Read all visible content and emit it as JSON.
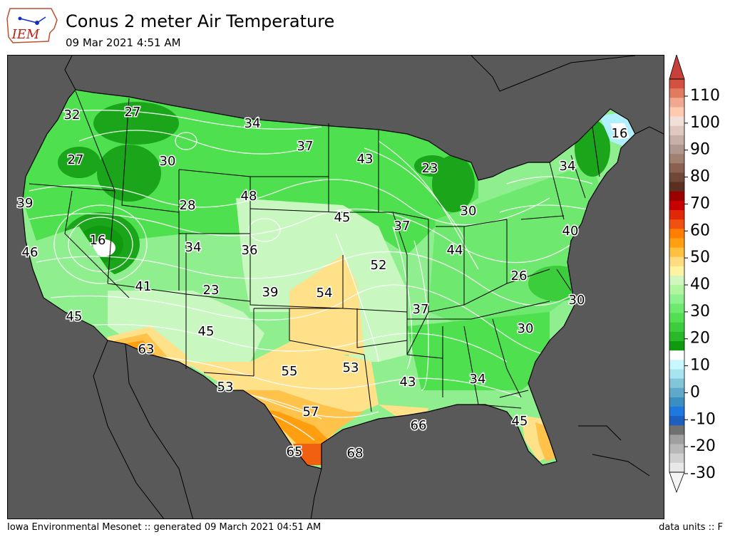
{
  "header": {
    "logo_text": "IEM",
    "title": "Conus 2 meter Air Temperature",
    "subtitle": "09 Mar 2021 4:51 AM"
  },
  "footer": {
    "left": "Iowa Environmental Mesonet :: generated 09 March 2021 04:51 AM",
    "right": "data units :: F"
  },
  "colors": {
    "background": "#595959",
    "green_dark": "#1aa51a",
    "green": "#4ee04e",
    "green_light": "#8fef8f",
    "green_pale": "#c8f7c0",
    "yellow": "#ffe18a",
    "orange_light": "#ffc24a",
    "orange": "#ff9f10",
    "red_orange": "#f06010",
    "cyan": "#b0f0ff",
    "white": "#ffffff"
  },
  "colorbar": {
    "ticks": [
      "110",
      "100",
      "90",
      "80",
      "70",
      "60",
      "50",
      "40",
      "30",
      "20",
      "10",
      "0",
      "-10",
      "-20",
      "-30"
    ],
    "segments": [
      "#e8e8e8",
      "#d0d0d0",
      "#b8b8b8",
      "#a0a0a0",
      "#707070",
      "#1d5fbf",
      "#1e78e0",
      "#3a8fc0",
      "#5fa8c8",
      "#82c4d8",
      "#a8e4f0",
      "#c8f8ff",
      "#ffffff",
      "#109a10",
      "#28b828",
      "#3ccd3c",
      "#52e052",
      "#6ee86e",
      "#8ef08e",
      "#b0f5a0",
      "#d0f7c0",
      "#fff2a0",
      "#ffdc80",
      "#ffc040",
      "#ffa010",
      "#ff8000",
      "#f05010",
      "#e02808",
      "#c80000",
      "#9a0000",
      "#5a3020",
      "#704838",
      "#8a6050",
      "#a08070",
      "#b09890",
      "#c8b0a8",
      "#e0c8c0",
      "#f0e0d8",
      "#ffcab0",
      "#f0a890",
      "#e07a60",
      "#d45040"
    ]
  },
  "map_labels": [
    {
      "text": "32"
    },
    {
      "text": "27"
    },
    {
      "text": "34"
    },
    {
      "text": "37"
    },
    {
      "text": "43"
    },
    {
      "text": "23"
    },
    {
      "text": "16"
    },
    {
      "text": "27"
    },
    {
      "text": "30"
    },
    {
      "text": "34"
    },
    {
      "text": "39"
    },
    {
      "text": "28"
    },
    {
      "text": "48"
    },
    {
      "text": "45"
    },
    {
      "text": "37"
    },
    {
      "text": "30"
    },
    {
      "text": "40"
    },
    {
      "text": "46"
    },
    {
      "text": "16"
    },
    {
      "text": "34"
    },
    {
      "text": "36"
    },
    {
      "text": "52"
    },
    {
      "text": "44"
    },
    {
      "text": "26"
    },
    {
      "text": "41"
    },
    {
      "text": "23"
    },
    {
      "text": "39"
    },
    {
      "text": "54"
    },
    {
      "text": "30"
    },
    {
      "text": "45"
    },
    {
      "text": "37"
    },
    {
      "text": "45"
    },
    {
      "text": "30"
    },
    {
      "text": "63"
    },
    {
      "text": "55"
    },
    {
      "text": "53"
    },
    {
      "text": "53"
    },
    {
      "text": "43"
    },
    {
      "text": "34"
    },
    {
      "text": "57"
    },
    {
      "text": "66"
    },
    {
      "text": "45"
    },
    {
      "text": "65"
    },
    {
      "text": "68"
    }
  ]
}
